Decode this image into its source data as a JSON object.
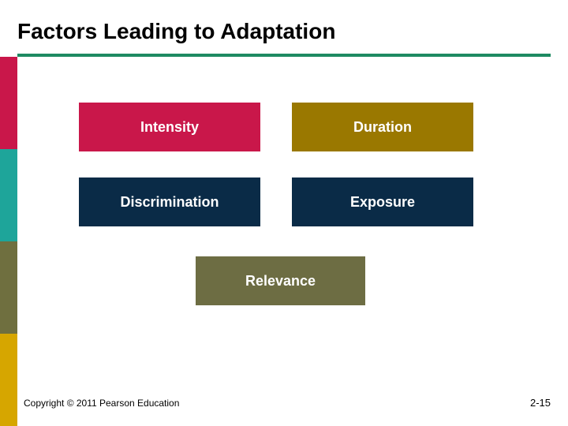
{
  "slide": {
    "title": "Factors Leading to Adaptation",
    "title_fontsize": 28,
    "title_color": "#000000",
    "underline_color": "#1e8a62",
    "bg_color": "#ffffff"
  },
  "sidebar": {
    "colors": [
      "#c9174a",
      "#1ea59a",
      "#6f6f3f",
      "#d6a600"
    ]
  },
  "boxes": {
    "intensity": {
      "label": "Intensity",
      "bg": "#c9174a",
      "fg": "#ffffff"
    },
    "duration": {
      "label": "Duration",
      "bg": "#9a7800",
      "fg": "#ffffff"
    },
    "discrimination": {
      "label": "Discrimination",
      "bg": "#0a2b47",
      "fg": "#ffffff"
    },
    "exposure": {
      "label": "Exposure",
      "bg": "#0a2b47",
      "fg": "#ffffff"
    },
    "relevance": {
      "label": "Relevance",
      "bg": "#6d6d43",
      "fg": "#ffffff"
    }
  },
  "footer": {
    "copyright": "Copyright © 2011 Pearson Education",
    "page": "2-15"
  }
}
